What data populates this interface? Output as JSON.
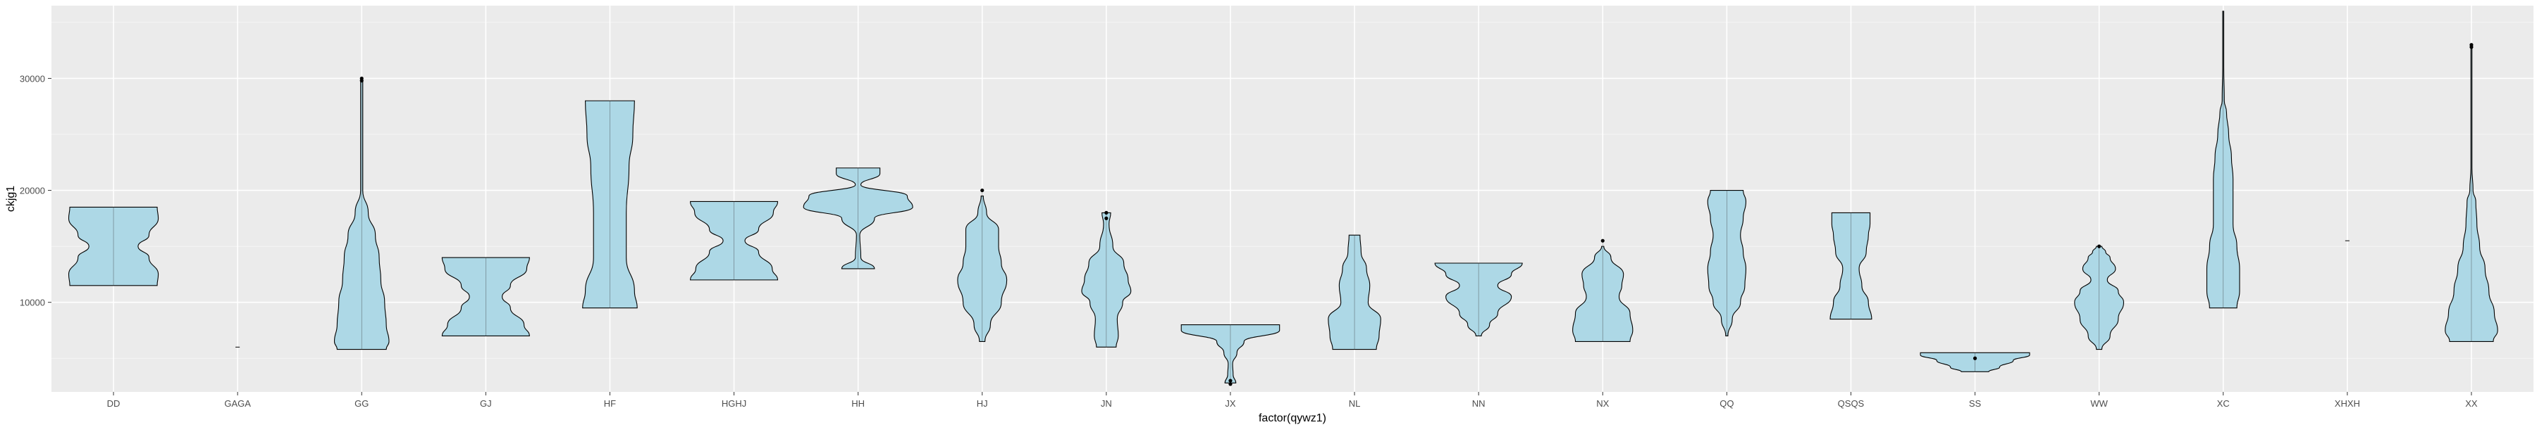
{
  "chart_data": {
    "type": "violin",
    "xlabel": "factor(qywz1)",
    "ylabel": "ckjg1",
    "ylim": [
      2000,
      36500
    ],
    "yticks": [
      10000,
      20000,
      30000
    ],
    "ytick_labels": [
      "10000",
      "20000",
      "30000"
    ],
    "grid": true,
    "colors": {
      "panel_bg": "#EBEBEB",
      "grid_major": "#FFFFFF",
      "violin_fill": "#ADD8E6",
      "violin_stroke": "#000000",
      "axis_text": "#4D4D4D",
      "title_text": "#000000"
    },
    "categories": [
      "DD",
      "GAGA",
      "GG",
      "GJ",
      "HF",
      "HGHJ",
      "HH",
      "HJ",
      "JN",
      "JX",
      "NL",
      "NN",
      "NX",
      "QQ",
      "QSQS",
      "SS",
      "WW",
      "XC",
      "XHXH",
      "XX"
    ],
    "violins": [
      {
        "category": "DD",
        "min": 11500,
        "max": 18500,
        "profile": [
          [
            11500,
            0.8
          ],
          [
            12500,
            0.82
          ],
          [
            14000,
            0.65
          ],
          [
            15000,
            0.45
          ],
          [
            16000,
            0.65
          ],
          [
            17500,
            0.82
          ],
          [
            18500,
            0.8
          ]
        ],
        "outliers": []
      },
      {
        "category": "GAGA",
        "min": 6000,
        "max": 6000,
        "profile": [],
        "outliers": []
      },
      {
        "category": "GG",
        "min": 5800,
        "max": 30000,
        "profile": [
          [
            5800,
            0.45
          ],
          [
            6500,
            0.5
          ],
          [
            8000,
            0.45
          ],
          [
            10000,
            0.42
          ],
          [
            12000,
            0.35
          ],
          [
            14000,
            0.32
          ],
          [
            16000,
            0.25
          ],
          [
            18000,
            0.12
          ],
          [
            20000,
            0.02
          ],
          [
            28500,
            0.02
          ],
          [
            30000,
            0.02
          ]
        ],
        "outliers": [
          30000,
          29800
        ]
      },
      {
        "category": "GJ",
        "min": 7000,
        "max": 14000,
        "profile": [
          [
            7000,
            0.8
          ],
          [
            8000,
            0.7
          ],
          [
            9500,
            0.45
          ],
          [
            10500,
            0.3
          ],
          [
            11500,
            0.45
          ],
          [
            13000,
            0.75
          ],
          [
            14000,
            0.8
          ]
        ],
        "outliers": []
      },
      {
        "category": "HF",
        "min": 9500,
        "max": 28000,
        "profile": [
          [
            9500,
            0.5
          ],
          [
            11000,
            0.45
          ],
          [
            14000,
            0.3
          ],
          [
            18000,
            0.3
          ],
          [
            22000,
            0.35
          ],
          [
            25000,
            0.42
          ],
          [
            28000,
            0.45
          ]
        ],
        "outliers": []
      },
      {
        "category": "HGHJ",
        "min": 12000,
        "max": 19000,
        "profile": [
          [
            12000,
            0.8
          ],
          [
            13000,
            0.7
          ],
          [
            14500,
            0.45
          ],
          [
            15500,
            0.2
          ],
          [
            16500,
            0.45
          ],
          [
            18000,
            0.72
          ],
          [
            19000,
            0.8
          ]
        ],
        "outliers": []
      },
      {
        "category": "HH",
        "min": 13000,
        "max": 22000,
        "profile": [
          [
            13000,
            0.3
          ],
          [
            14000,
            0.05
          ],
          [
            16000,
            0.03
          ],
          [
            17500,
            0.3
          ],
          [
            18500,
            1.0
          ],
          [
            19500,
            0.9
          ],
          [
            20500,
            0.05
          ],
          [
            21500,
            0.4
          ],
          [
            22000,
            0.4
          ]
        ],
        "outliers": []
      },
      {
        "category": "HJ",
        "min": 6500,
        "max": 20000,
        "profile": [
          [
            6500,
            0.05
          ],
          [
            8000,
            0.15
          ],
          [
            10000,
            0.35
          ],
          [
            12000,
            0.45
          ],
          [
            13500,
            0.35
          ],
          [
            15000,
            0.3
          ],
          [
            16500,
            0.3
          ],
          [
            18000,
            0.08
          ],
          [
            19500,
            0.02
          ]
        ],
        "outliers": [
          20000
        ]
      },
      {
        "category": "JN",
        "min": 6000,
        "max": 18000,
        "profile": [
          [
            6000,
            0.18
          ],
          [
            7000,
            0.22
          ],
          [
            8500,
            0.2
          ],
          [
            10000,
            0.3
          ],
          [
            11000,
            0.45
          ],
          [
            12000,
            0.4
          ],
          [
            13500,
            0.32
          ],
          [
            15000,
            0.12
          ],
          [
            17000,
            0.05
          ],
          [
            18000,
            0.08
          ]
        ],
        "outliers": [
          18000,
          17500
        ]
      },
      {
        "category": "JX",
        "min": 2800,
        "max": 8000,
        "profile": [
          [
            2800,
            0.1
          ],
          [
            3500,
            0.05
          ],
          [
            4500,
            0.04
          ],
          [
            5500,
            0.12
          ],
          [
            6500,
            0.25
          ],
          [
            7500,
            0.9
          ],
          [
            8000,
            0.9
          ]
        ],
        "outliers": [
          2700,
          3000
        ]
      },
      {
        "category": "NL",
        "min": 5800,
        "max": 16000,
        "profile": [
          [
            5800,
            0.4
          ],
          [
            7000,
            0.45
          ],
          [
            8500,
            0.48
          ],
          [
            10000,
            0.25
          ],
          [
            11500,
            0.28
          ],
          [
            13000,
            0.22
          ],
          [
            14500,
            0.12
          ],
          [
            16000,
            0.1
          ]
        ],
        "outliers": []
      },
      {
        "category": "NN",
        "min": 7000,
        "max": 13500,
        "profile": [
          [
            7000,
            0.05
          ],
          [
            8000,
            0.2
          ],
          [
            9000,
            0.35
          ],
          [
            10500,
            0.6
          ],
          [
            11500,
            0.35
          ],
          [
            12500,
            0.6
          ],
          [
            13500,
            0.8
          ]
        ],
        "outliers": []
      },
      {
        "category": "NX",
        "min": 6500,
        "max": 15500,
        "profile": [
          [
            6500,
            0.5
          ],
          [
            7500,
            0.55
          ],
          [
            9000,
            0.5
          ],
          [
            10500,
            0.3
          ],
          [
            11500,
            0.35
          ],
          [
            12500,
            0.38
          ],
          [
            14000,
            0.15
          ],
          [
            15000,
            0.02
          ]
        ],
        "outliers": [
          15500
        ]
      },
      {
        "category": "QQ",
        "min": 7000,
        "max": 20000,
        "profile": [
          [
            7000,
            0.02
          ],
          [
            8500,
            0.1
          ],
          [
            10000,
            0.25
          ],
          [
            11500,
            0.33
          ],
          [
            13000,
            0.35
          ],
          [
            14500,
            0.3
          ],
          [
            16000,
            0.25
          ],
          [
            17500,
            0.3
          ],
          [
            19000,
            0.35
          ],
          [
            20000,
            0.3
          ]
        ],
        "outliers": []
      },
      {
        "category": "QSQS",
        "min": 8500,
        "max": 18000,
        "profile": [
          [
            8500,
            0.38
          ],
          [
            10000,
            0.32
          ],
          [
            11500,
            0.2
          ],
          [
            13000,
            0.15
          ],
          [
            14500,
            0.28
          ],
          [
            16000,
            0.32
          ],
          [
            17000,
            0.35
          ],
          [
            18000,
            0.35
          ]
        ],
        "outliers": []
      },
      {
        "category": "SS",
        "min": 3800,
        "max": 5500,
        "profile": [
          [
            3800,
            0.25
          ],
          [
            4200,
            0.45
          ],
          [
            4800,
            0.7
          ],
          [
            5300,
            1.0
          ],
          [
            5500,
            1.0
          ]
        ],
        "outliers": [
          5000
        ]
      },
      {
        "category": "WW",
        "min": 5800,
        "max": 15000,
        "profile": [
          [
            5800,
            0.05
          ],
          [
            7000,
            0.2
          ],
          [
            8500,
            0.35
          ],
          [
            10000,
            0.45
          ],
          [
            11000,
            0.35
          ],
          [
            12000,
            0.15
          ],
          [
            13000,
            0.3
          ],
          [
            14000,
            0.2
          ],
          [
            14500,
            0.12
          ],
          [
            15000,
            0.05
          ]
        ],
        "outliers": [
          15000
        ]
      },
      {
        "category": "XC",
        "min": 9500,
        "max": 36000,
        "profile": [
          [
            9500,
            0.25
          ],
          [
            11000,
            0.3
          ],
          [
            13000,
            0.3
          ],
          [
            15000,
            0.25
          ],
          [
            17000,
            0.18
          ],
          [
            19000,
            0.18
          ],
          [
            21000,
            0.18
          ],
          [
            23000,
            0.15
          ],
          [
            25000,
            0.1
          ],
          [
            27000,
            0.06
          ],
          [
            28000,
            0.02
          ],
          [
            31000,
            0.01
          ],
          [
            36000,
            0.01
          ]
        ],
        "outliers": []
      },
      {
        "category": "XHXH",
        "min": 15500,
        "max": 15500,
        "profile": [],
        "outliers": []
      },
      {
        "category": "XX",
        "min": 6500,
        "max": 33000,
        "profile": [
          [
            6500,
            0.4
          ],
          [
            7500,
            0.48
          ],
          [
            9000,
            0.42
          ],
          [
            11000,
            0.32
          ],
          [
            13000,
            0.25
          ],
          [
            15000,
            0.15
          ],
          [
            17000,
            0.1
          ],
          [
            19000,
            0.08
          ],
          [
            20000,
            0.03
          ],
          [
            22000,
            0.01
          ],
          [
            30000,
            0.01
          ],
          [
            33000,
            0.01
          ]
        ],
        "outliers": [
          33000,
          32800
        ]
      }
    ]
  }
}
